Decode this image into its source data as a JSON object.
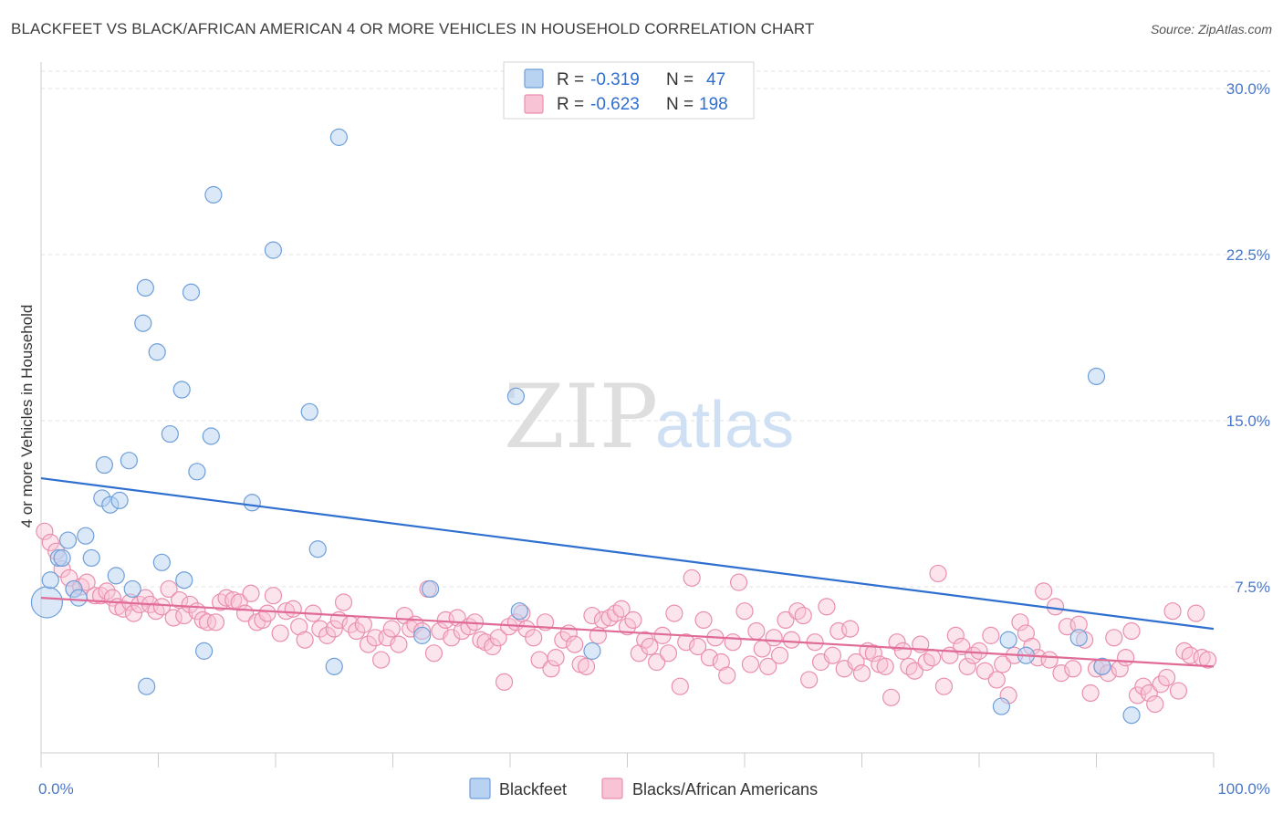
{
  "title": "BLACKFEET VS BLACK/AFRICAN AMERICAN 4 OR MORE VEHICLES IN HOUSEHOLD CORRELATION CHART",
  "source": "Source: ZipAtlas.com",
  "watermark": {
    "zip": "ZIP",
    "atlas": "atlas"
  },
  "colors": {
    "blackfeet_fill": "#b8d2f2",
    "blackfeet_stroke": "#6f9fd8",
    "blackfeet_line": "#2f6fd0",
    "black_fill": "#f8c3d4",
    "black_stroke": "#ea8fae",
    "black_line": "#e06b96",
    "tick_text": "#4a78c8",
    "grid": "#e2e2e2"
  },
  "legend": {
    "rows": [
      {
        "r_label": "R =",
        "r_value": "-0.319",
        "n_label": "N =",
        "n_value": "47"
      },
      {
        "r_label": "R =",
        "r_value": "-0.623",
        "n_label": "N =",
        "n_value": "198"
      }
    ]
  },
  "bottom_legend": [
    "Blackfeet",
    "Blacks/African Americans"
  ],
  "chart_data": {
    "type": "scatter",
    "title": "BLACKFEET VS BLACK/AFRICAN AMERICAN 4 OR MORE VEHICLES IN HOUSEHOLD CORRELATION CHART",
    "xlabel": "",
    "ylabel": "4 or more Vehicles in Household",
    "xlim": [
      0,
      100
    ],
    "ylim": [
      0,
      31.5
    ],
    "x_tick_labels": [
      "0.0%",
      "100.0%"
    ],
    "y_ticks": [
      7.5,
      15.0,
      22.5,
      30.0
    ],
    "y_tick_labels": [
      "7.5%",
      "15.0%",
      "22.5%",
      "30.0%"
    ],
    "grid": "horizontal dashed",
    "legend_position": "top-center",
    "series": [
      {
        "name": "Blackfeet",
        "r": -0.319,
        "n": 47,
        "trend": {
          "x": [
            0,
            100
          ],
          "y": [
            12.4,
            5.6
          ]
        },
        "points": [
          [
            0.5,
            6.8
          ],
          [
            0.8,
            7.8
          ],
          [
            1.5,
            8.8
          ],
          [
            1.8,
            8.8
          ],
          [
            2.3,
            9.6
          ],
          [
            2.8,
            7.4
          ],
          [
            3.2,
            7.0
          ],
          [
            3.8,
            9.8
          ],
          [
            4.3,
            8.8
          ],
          [
            5.2,
            11.5
          ],
          [
            5.4,
            13.0
          ],
          [
            5.9,
            11.2
          ],
          [
            6.4,
            8.0
          ],
          [
            6.7,
            11.4
          ],
          [
            7.5,
            13.2
          ],
          [
            7.8,
            7.4
          ],
          [
            8.7,
            19.4
          ],
          [
            8.9,
            21.0
          ],
          [
            9.0,
            3.0
          ],
          [
            9.9,
            18.1
          ],
          [
            10.3,
            8.6
          ],
          [
            11.0,
            14.4
          ],
          [
            12.0,
            16.4
          ],
          [
            12.2,
            7.8
          ],
          [
            12.8,
            20.8
          ],
          [
            13.3,
            12.7
          ],
          [
            13.9,
            4.6
          ],
          [
            14.5,
            14.3
          ],
          [
            14.7,
            25.2
          ],
          [
            18.0,
            11.3
          ],
          [
            19.8,
            22.7
          ],
          [
            22.9,
            15.4
          ],
          [
            23.6,
            9.2
          ],
          [
            25.0,
            3.9
          ],
          [
            25.4,
            27.8
          ],
          [
            32.5,
            5.3
          ],
          [
            33.2,
            7.4
          ],
          [
            40.5,
            16.1
          ],
          [
            40.8,
            6.4
          ],
          [
            47.0,
            4.6
          ],
          [
            81.9,
            2.1
          ],
          [
            82.5,
            5.1
          ],
          [
            84.0,
            4.4
          ],
          [
            88.5,
            5.2
          ],
          [
            90.0,
            17.0
          ],
          [
            90.5,
            3.9
          ],
          [
            93.0,
            1.7
          ]
        ]
      },
      {
        "name": "Blacks/African Americans",
        "r": -0.623,
        "n": 198,
        "trend": {
          "x": [
            0,
            100
          ],
          "y": [
            7.0,
            3.9
          ]
        },
        "points": [
          [
            0.3,
            10.0
          ],
          [
            0.8,
            9.5
          ],
          [
            1.3,
            9.1
          ],
          [
            1.8,
            8.3
          ],
          [
            2.4,
            7.9
          ],
          [
            2.8,
            7.4
          ],
          [
            3.4,
            7.5
          ],
          [
            3.9,
            7.7
          ],
          [
            4.6,
            7.1
          ],
          [
            5.1,
            7.1
          ],
          [
            5.6,
            7.3
          ],
          [
            6.1,
            7.0
          ],
          [
            6.5,
            6.6
          ],
          [
            7.0,
            6.5
          ],
          [
            7.6,
            6.8
          ],
          [
            7.9,
            6.3
          ],
          [
            8.4,
            6.7
          ],
          [
            8.9,
            7.0
          ],
          [
            9.3,
            6.7
          ],
          [
            9.8,
            6.4
          ],
          [
            10.3,
            6.6
          ],
          [
            10.9,
            7.4
          ],
          [
            11.3,
            6.1
          ],
          [
            11.8,
            6.9
          ],
          [
            12.2,
            6.2
          ],
          [
            12.7,
            6.7
          ],
          [
            13.3,
            6.4
          ],
          [
            13.8,
            6.0
          ],
          [
            14.2,
            5.9
          ],
          [
            14.9,
            5.9
          ],
          [
            15.3,
            6.8
          ],
          [
            15.8,
            7.0
          ],
          [
            16.4,
            6.9
          ],
          [
            16.9,
            6.8
          ],
          [
            17.4,
            6.3
          ],
          [
            17.9,
            7.2
          ],
          [
            18.4,
            5.9
          ],
          [
            18.9,
            6.0
          ],
          [
            19.3,
            6.3
          ],
          [
            19.8,
            7.1
          ],
          [
            20.4,
            5.4
          ],
          [
            20.9,
            6.4
          ],
          [
            21.5,
            6.5
          ],
          [
            22.0,
            5.7
          ],
          [
            22.5,
            5.1
          ],
          [
            23.2,
            6.3
          ],
          [
            23.8,
            5.6
          ],
          [
            24.4,
            5.3
          ],
          [
            25.0,
            5.6
          ],
          [
            25.4,
            6.0
          ],
          [
            25.8,
            6.8
          ],
          [
            26.4,
            5.8
          ],
          [
            26.9,
            5.5
          ],
          [
            27.5,
            5.8
          ],
          [
            27.9,
            4.9
          ],
          [
            28.5,
            5.2
          ],
          [
            29.0,
            4.2
          ],
          [
            29.5,
            5.2
          ],
          [
            29.9,
            5.6
          ],
          [
            30.5,
            4.9
          ],
          [
            31.0,
            6.2
          ],
          [
            31.5,
            5.6
          ],
          [
            31.9,
            5.8
          ],
          [
            32.5,
            5.5
          ],
          [
            33.0,
            7.4
          ],
          [
            33.5,
            4.5
          ],
          [
            34.0,
            5.5
          ],
          [
            34.5,
            6.0
          ],
          [
            35.0,
            5.2
          ],
          [
            35.5,
            6.1
          ],
          [
            35.9,
            5.5
          ],
          [
            36.5,
            5.7
          ],
          [
            37.0,
            5.9
          ],
          [
            37.5,
            5.1
          ],
          [
            37.9,
            5.0
          ],
          [
            38.5,
            4.8
          ],
          [
            39.0,
            5.2
          ],
          [
            39.5,
            3.2
          ],
          [
            39.9,
            5.7
          ],
          [
            40.5,
            5.9
          ],
          [
            41.0,
            6.3
          ],
          [
            41.4,
            5.6
          ],
          [
            42.0,
            5.2
          ],
          [
            42.5,
            4.2
          ],
          [
            43.0,
            5.9
          ],
          [
            43.5,
            3.8
          ],
          [
            43.9,
            4.3
          ],
          [
            44.5,
            5.1
          ],
          [
            45.0,
            5.4
          ],
          [
            45.5,
            4.9
          ],
          [
            46.0,
            4.0
          ],
          [
            46.5,
            3.9
          ],
          [
            47.0,
            6.2
          ],
          [
            47.5,
            5.3
          ],
          [
            47.9,
            6.0
          ],
          [
            48.5,
            6.1
          ],
          [
            49.0,
            6.3
          ],
          [
            49.5,
            6.5
          ],
          [
            50.0,
            5.7
          ],
          [
            50.5,
            6.0
          ],
          [
            51.0,
            4.5
          ],
          [
            51.5,
            5.1
          ],
          [
            51.9,
            4.8
          ],
          [
            52.5,
            4.1
          ],
          [
            53.0,
            5.3
          ],
          [
            53.5,
            4.5
          ],
          [
            54.0,
            6.3
          ],
          [
            54.5,
            3.0
          ],
          [
            55.0,
            5.0
          ],
          [
            55.5,
            7.9
          ],
          [
            56.0,
            4.8
          ],
          [
            56.5,
            6.0
          ],
          [
            57.0,
            4.3
          ],
          [
            57.5,
            5.2
          ],
          [
            58.0,
            4.1
          ],
          [
            58.5,
            3.5
          ],
          [
            59.0,
            5.0
          ],
          [
            59.5,
            7.7
          ],
          [
            60.0,
            6.4
          ],
          [
            60.5,
            4.0
          ],
          [
            61.0,
            5.5
          ],
          [
            61.5,
            4.7
          ],
          [
            62.0,
            3.9
          ],
          [
            62.5,
            5.2
          ],
          [
            63.0,
            4.4
          ],
          [
            63.5,
            6.0
          ],
          [
            64.0,
            5.1
          ],
          [
            64.5,
            6.4
          ],
          [
            65.0,
            6.2
          ],
          [
            65.5,
            3.3
          ],
          [
            66.0,
            5.0
          ],
          [
            66.5,
            4.1
          ],
          [
            67.0,
            6.6
          ],
          [
            67.5,
            4.4
          ],
          [
            68.0,
            5.5
          ],
          [
            68.5,
            3.8
          ],
          [
            69.0,
            5.6
          ],
          [
            69.5,
            4.1
          ],
          [
            70.0,
            3.6
          ],
          [
            70.5,
            4.6
          ],
          [
            71.0,
            4.5
          ],
          [
            71.5,
            4.0
          ],
          [
            72.0,
            3.9
          ],
          [
            72.5,
            2.5
          ],
          [
            73.0,
            5.0
          ],
          [
            73.5,
            4.6
          ],
          [
            74.0,
            3.9
          ],
          [
            74.5,
            3.7
          ],
          [
            75.0,
            4.9
          ],
          [
            75.5,
            4.1
          ],
          [
            76.0,
            4.3
          ],
          [
            76.5,
            8.1
          ],
          [
            77.0,
            3.0
          ],
          [
            77.5,
            4.4
          ],
          [
            78.0,
            5.3
          ],
          [
            78.5,
            4.8
          ],
          [
            79.0,
            3.9
          ],
          [
            79.5,
            4.4
          ],
          [
            80.0,
            4.6
          ],
          [
            80.5,
            3.7
          ],
          [
            81.0,
            5.3
          ],
          [
            81.5,
            3.3
          ],
          [
            82.0,
            4.0
          ],
          [
            82.5,
            2.6
          ],
          [
            83.0,
            4.4
          ],
          [
            83.5,
            5.9
          ],
          [
            84.0,
            5.4
          ],
          [
            84.5,
            4.8
          ],
          [
            85.0,
            4.3
          ],
          [
            85.5,
            7.3
          ],
          [
            86.0,
            4.2
          ],
          [
            86.5,
            6.6
          ],
          [
            87.0,
            3.6
          ],
          [
            87.5,
            5.7
          ],
          [
            88.0,
            3.8
          ],
          [
            88.5,
            5.8
          ],
          [
            89.0,
            5.1
          ],
          [
            89.5,
            2.7
          ],
          [
            90.0,
            3.8
          ],
          [
            90.5,
            3.9
          ],
          [
            91.0,
            3.6
          ],
          [
            91.5,
            5.2
          ],
          [
            92.0,
            3.8
          ],
          [
            92.5,
            4.3
          ],
          [
            93.0,
            5.5
          ],
          [
            93.5,
            2.6
          ],
          [
            94.0,
            3.0
          ],
          [
            94.5,
            2.7
          ],
          [
            95.0,
            2.2
          ],
          [
            95.5,
            3.1
          ],
          [
            96.0,
            3.4
          ],
          [
            96.5,
            6.4
          ],
          [
            97.0,
            2.8
          ],
          [
            97.5,
            4.6
          ],
          [
            98.0,
            4.4
          ],
          [
            98.5,
            6.3
          ],
          [
            99.0,
            4.3
          ],
          [
            99.5,
            4.2
          ]
        ]
      }
    ]
  }
}
